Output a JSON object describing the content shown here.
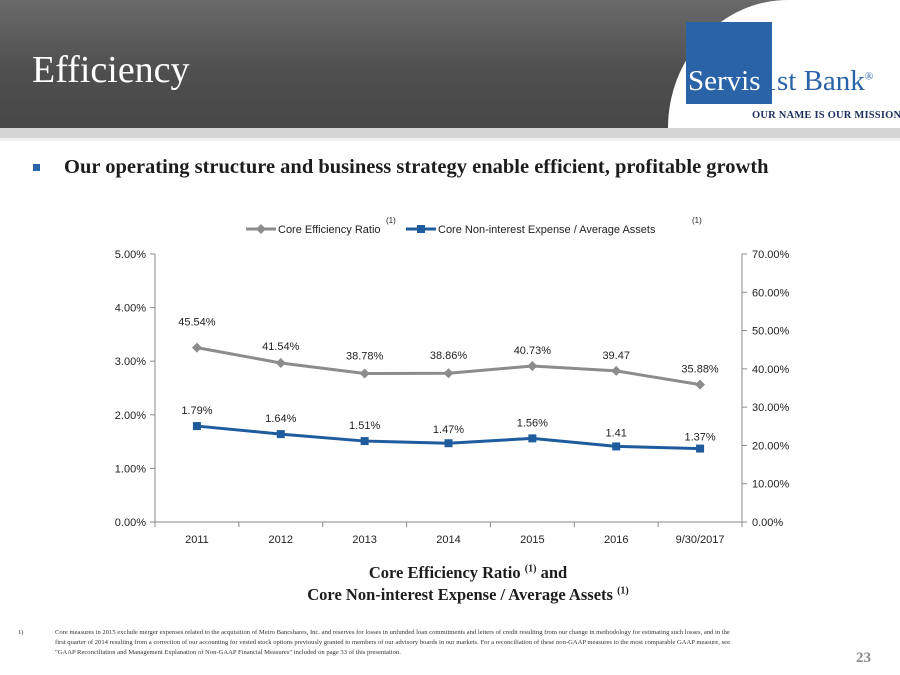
{
  "slide": {
    "title": "Efficiency",
    "logo": {
      "name_part1": "Servis",
      "name_part2": "1st Bank",
      "registered": "®",
      "tagline": "OUR NAME IS OUR MISSION."
    },
    "bullet": "Our operating structure and business strategy enable efficient, profitable growth",
    "caption_line1": "Core Efficiency Ratio",
    "caption_line1_sup": "(1)",
    "caption_line1_suffix": "and",
    "caption_line2": "Core Non-interest Expense / Average Assets",
    "caption_line2_sup": "(1)",
    "footnote_number": "1)",
    "footnote_text": "Core measures in 2015 exclude merger expenses related to the acquisition of Metro Bancshares, Inc. and reserves for losses in unfunded loan commitments and letters of credit resulting from our change in methodology for estimating such losses, and in the first quarter of 2014 resulting from a correction of our accounting for vested stock options previously granted to members of our advisory boards in our markets. For a reconciliation of these non-GAAP measures to the most comparable GAAP measure, see \"GAAP Reconciliation and Management Explanation of Non-GAAP Financial Measures\" included on page 33 of this presentation.",
    "page_number": "23"
  },
  "chart_data": {
    "type": "line",
    "categories": [
      "2011",
      "2012",
      "2013",
      "2014",
      "2015",
      "2016",
      "9/30/2017"
    ],
    "series": [
      {
        "name": "Core Efficiency Ratio",
        "name_sup": "(1)",
        "axis": "right",
        "color": "#8c8c8c",
        "marker": "diamond",
        "values": [
          45.54,
          41.54,
          38.78,
          38.86,
          40.73,
          39.47,
          35.88
        ],
        "labels": [
          "45.54%",
          "41.54%",
          "38.78%",
          "38.86%",
          "40.73%",
          "39.47",
          "35.88%"
        ]
      },
      {
        "name": "Core Non-interest Expense / Average Assets",
        "name_sup": "(1)",
        "axis": "left",
        "color": "#1f5c9e",
        "marker": "square",
        "values": [
          1.79,
          1.64,
          1.51,
          1.47,
          1.56,
          1.41,
          1.37
        ],
        "labels": [
          "1.79%",
          "1.64%",
          "1.51%",
          "1.47%",
          "1.56%",
          "1.41",
          "1.37%"
        ]
      }
    ],
    "y_left": {
      "ylim": [
        0,
        5
      ],
      "ticks": [
        "0.00%",
        "1.00%",
        "2.00%",
        "3.00%",
        "4.00%",
        "5.00%"
      ]
    },
    "y_right": {
      "ylim": [
        0,
        70
      ],
      "ticks": [
        "0.00%",
        "10.00%",
        "20.00%",
        "30.00%",
        "40.00%",
        "50.00%",
        "60.00%",
        "70.00%"
      ]
    },
    "legend_position": "top",
    "grid": false
  }
}
